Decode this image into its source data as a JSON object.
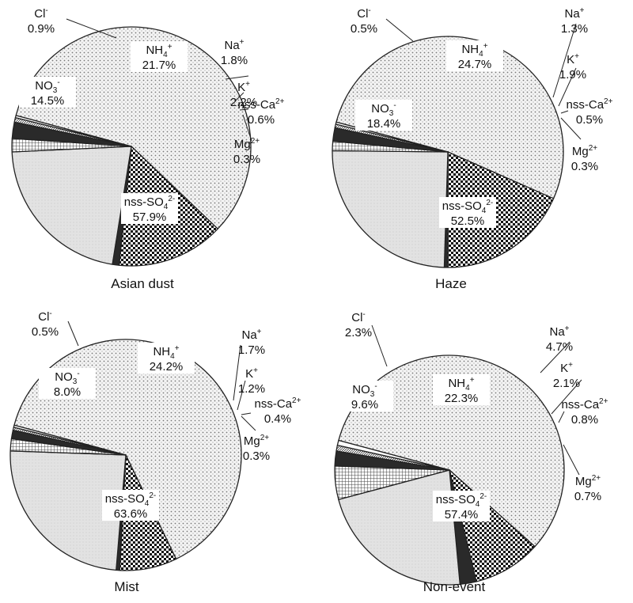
{
  "chart_data": [
    {
      "type": "pie",
      "title": "Asian dust",
      "slices": [
        {
          "name": "nss-SO4 2-",
          "value": 57.9,
          "label": "57.9%",
          "pattern": "dots",
          "text_style": "inside"
        },
        {
          "name": "NO3 -",
          "value": 14.5,
          "label": "14.5%",
          "pattern": "check",
          "text_style": "inside"
        },
        {
          "name": "Cl-",
          "value": 0.9,
          "label": "0.9%",
          "pattern": "dark",
          "text_style": "leader"
        },
        {
          "name": "NH4 +",
          "value": 21.7,
          "label": "21.7%",
          "pattern": "light",
          "text_style": "inside"
        },
        {
          "name": "Na+",
          "value": 1.8,
          "label": "1.8%",
          "pattern": "grid",
          "text_style": "leader"
        },
        {
          "name": "K+",
          "value": 2.2,
          "label": "2.2%",
          "pattern": "dark",
          "text_style": "leader"
        },
        {
          "name": "nss-Ca2+",
          "value": 0.6,
          "label": "0.6%",
          "pattern": "hatch",
          "text_style": "leader"
        },
        {
          "name": "Mg2+",
          "value": 0.3,
          "label": "0.3%",
          "pattern": "white",
          "text_style": "leader"
        }
      ]
    },
    {
      "type": "pie",
      "title": "Haze",
      "slices": [
        {
          "name": "nss-SO4 2-",
          "value": 52.5,
          "label": "52.5%",
          "pattern": "dots",
          "text_style": "inside"
        },
        {
          "name": "NO3 -",
          "value": 18.4,
          "label": "18.4%",
          "pattern": "check",
          "text_style": "inside"
        },
        {
          "name": "Cl-",
          "value": 0.5,
          "label": "0.5%",
          "pattern": "dark",
          "text_style": "leader"
        },
        {
          "name": "NH4 +",
          "value": 24.7,
          "label": "24.7%",
          "pattern": "light",
          "text_style": "inside"
        },
        {
          "name": "Na+",
          "value": 1.3,
          "label": "1.3%",
          "pattern": "grid",
          "text_style": "leader"
        },
        {
          "name": "K+",
          "value": 1.9,
          "label": "1.9%",
          "pattern": "dark",
          "text_style": "leader"
        },
        {
          "name": "nss-Ca2+",
          "value": 0.5,
          "label": "0.5%",
          "pattern": "hatch",
          "text_style": "leader"
        },
        {
          "name": "Mg2+",
          "value": 0.3,
          "label": "0.3%",
          "pattern": "white",
          "text_style": "leader"
        }
      ]
    },
    {
      "type": "pie",
      "title": "Mist",
      "slices": [
        {
          "name": "nss-SO4 2-",
          "value": 63.6,
          "label": "63.6%",
          "pattern": "dots",
          "text_style": "inside"
        },
        {
          "name": "NO3 -",
          "value": 8.0,
          "label": "8.0%",
          "pattern": "check",
          "text_style": "inside"
        },
        {
          "name": "Cl-",
          "value": 0.5,
          "label": "0.5%",
          "pattern": "dark",
          "text_style": "leader"
        },
        {
          "name": "NH4 +",
          "value": 24.2,
          "label": "24.2%",
          "pattern": "light",
          "text_style": "inside"
        },
        {
          "name": "Na+",
          "value": 1.7,
          "label": "1.7%",
          "pattern": "grid",
          "text_style": "leader"
        },
        {
          "name": "K+",
          "value": 1.2,
          "label": "1.2%",
          "pattern": "dark",
          "text_style": "leader"
        },
        {
          "name": "nss-Ca2+",
          "value": 0.4,
          "label": "0.4%",
          "pattern": "hatch",
          "text_style": "leader"
        },
        {
          "name": "Mg2+",
          "value": 0.3,
          "label": "0.3%",
          "pattern": "white",
          "text_style": "leader"
        }
      ]
    },
    {
      "type": "pie",
      "title": "Non-event",
      "slices": [
        {
          "name": "nss-SO4 2-",
          "value": 57.4,
          "label": "57.4%",
          "pattern": "dots",
          "text_style": "inside"
        },
        {
          "name": "NO3 -",
          "value": 9.6,
          "label": "9.6%",
          "pattern": "check",
          "text_style": "inside"
        },
        {
          "name": "Cl-",
          "value": 2.3,
          "label": "2.3%",
          "pattern": "dark",
          "text_style": "leader"
        },
        {
          "name": "NH4 +",
          "value": 22.3,
          "label": "22.3%",
          "pattern": "light",
          "text_style": "inside"
        },
        {
          "name": "Na+",
          "value": 4.7,
          "label": "4.7%",
          "pattern": "grid",
          "text_style": "leader"
        },
        {
          "name": "K+",
          "value": 2.1,
          "label": "2.1%",
          "pattern": "dark",
          "text_style": "leader"
        },
        {
          "name": "nss-Ca2+",
          "value": 0.8,
          "label": "0.8%",
          "pattern": "hatch",
          "text_style": "leader"
        },
        {
          "name": "Mg2+",
          "value": 0.7,
          "label": "0.7%",
          "pattern": "white",
          "text_style": "leader"
        }
      ]
    }
  ],
  "species_labels": {
    "nss-SO4 2-": {
      "base": "nss-SO",
      "sub": "4",
      "sup": "2-"
    },
    "NO3 -": {
      "base": "NO",
      "sub": "3",
      "sup": "-"
    },
    "Cl-": {
      "base": "Cl",
      "sub": "",
      "sup": "-"
    },
    "NH4 +": {
      "base": "NH",
      "sub": "4",
      "sup": "+"
    },
    "Na+": {
      "base": "Na",
      "sub": "",
      "sup": "+"
    },
    "K+": {
      "base": "K",
      "sub": "",
      "sup": "+"
    },
    "nss-Ca2+": {
      "base": "nss-Ca",
      "sub": "",
      "sup": "2+"
    },
    "Mg2+": {
      "base": "Mg",
      "sub": "",
      "sup": "2+"
    }
  },
  "style": {
    "start_angle_deg": 165,
    "direction": "clockwise",
    "outline_color": "#222222",
    "dark_color": "#2a2a2a",
    "light_fill": "#e6e6e6"
  }
}
